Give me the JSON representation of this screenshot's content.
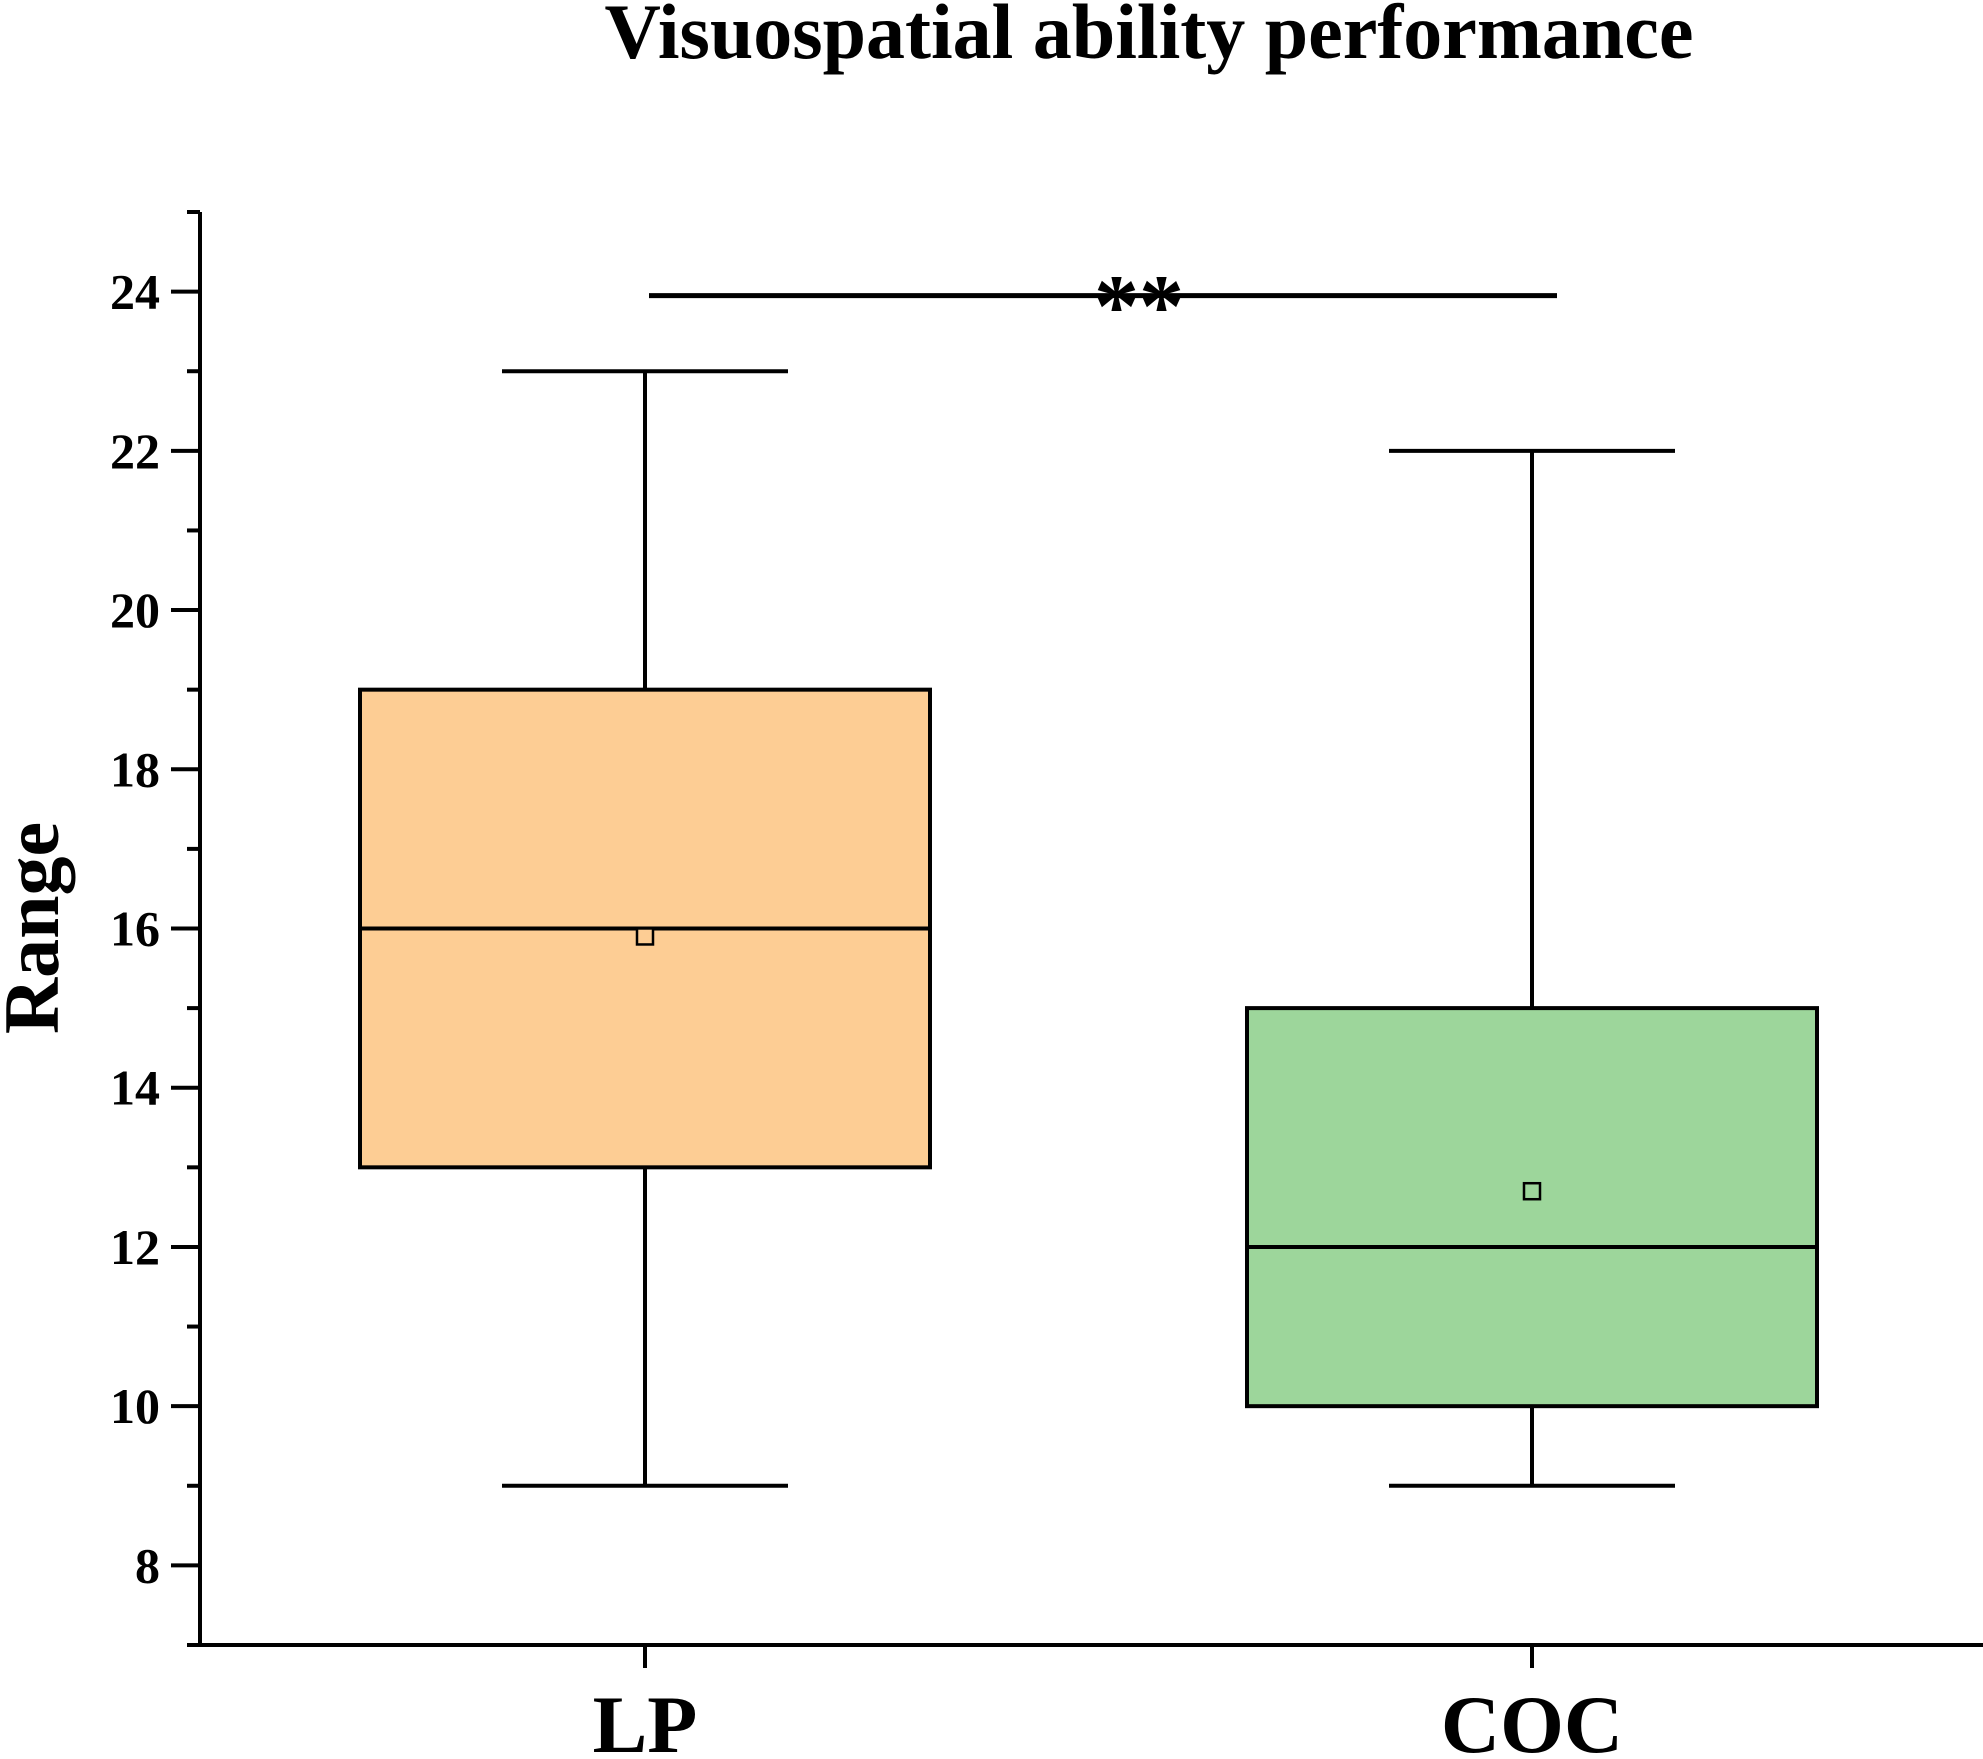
{
  "chart_data": {
    "type": "box",
    "title": "Visuospatial ability performance",
    "xlabel": "",
    "ylabel": "Range",
    "ylim": [
      7,
      25
    ],
    "yticks": [
      8,
      10,
      12,
      14,
      16,
      18,
      20,
      22,
      24
    ],
    "categories": [
      "LP",
      "COC"
    ],
    "boxes": [
      {
        "category": "LP",
        "whisker_low": 9,
        "q1": 13,
        "median": 16,
        "q3": 19,
        "whisker_high": 23,
        "mean": 15.9,
        "color": "#FDCD94"
      },
      {
        "category": "COC",
        "whisker_low": 9,
        "q1": 10,
        "median": 12,
        "q3": 15,
        "whisker_high": 22,
        "mean": 12.7,
        "color": "#9DD69B"
      }
    ],
    "significance": {
      "from": "LP",
      "to": "COC",
      "label": "**",
      "y": 24
    },
    "grid": false,
    "legend": "none"
  }
}
